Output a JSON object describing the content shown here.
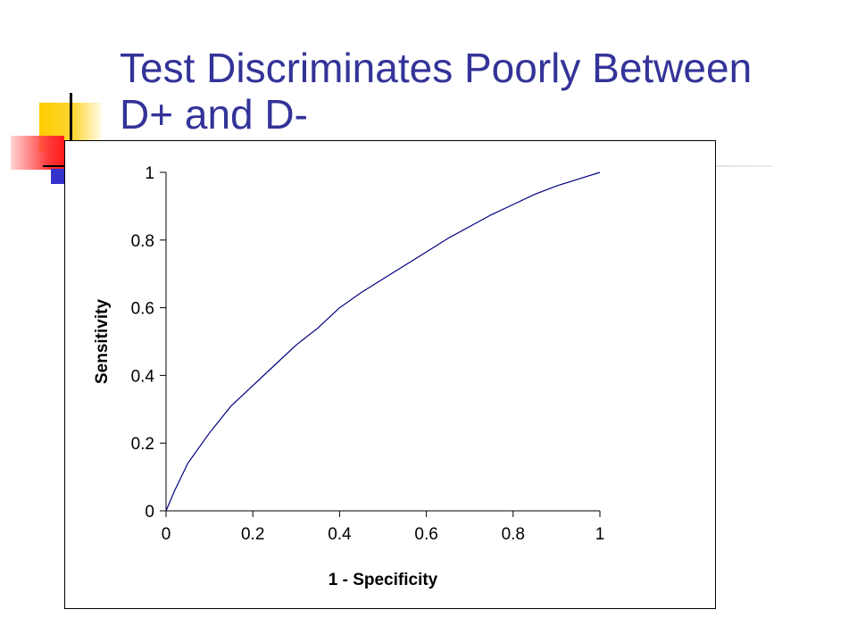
{
  "slide": {
    "title": "Test Discriminates Poorly Between D+ and D-"
  },
  "chart_data": {
    "type": "line",
    "title": "",
    "xlabel": "1 - Specificity",
    "ylabel": "Sensitivity",
    "xlim": [
      0,
      1
    ],
    "ylim": [
      0,
      1
    ],
    "xticks": [
      "0",
      "0.2",
      "0.4",
      "0.6",
      "0.8",
      "1"
    ],
    "yticks": [
      "0",
      "0.2",
      "0.4",
      "0.6",
      "0.8",
      "1"
    ],
    "grid": false,
    "legend": "none",
    "series": [
      {
        "color": "#00007f",
        "x": [
          0,
          0.02,
          0.05,
          0.1,
          0.15,
          0.2,
          0.25,
          0.3,
          0.35,
          0.4,
          0.45,
          0.5,
          0.55,
          0.6,
          0.65,
          0.7,
          0.75,
          0.8,
          0.85,
          0.9,
          0.95,
          1
        ],
        "y": [
          0,
          0.06,
          0.14,
          0.23,
          0.31,
          0.37,
          0.43,
          0.49,
          0.54,
          0.6,
          0.645,
          0.685,
          0.725,
          0.765,
          0.805,
          0.84,
          0.875,
          0.905,
          0.935,
          0.96,
          0.98,
          1
        ]
      }
    ]
  }
}
